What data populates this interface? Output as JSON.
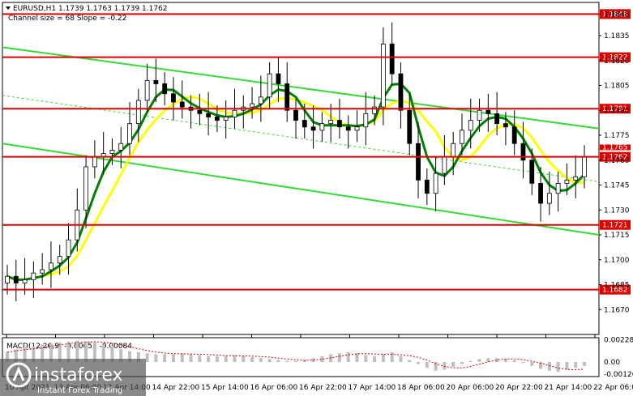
{
  "chart_data": {
    "type": "candlestick",
    "symbol_line": "EURUSD,H1  1.1739 1.1763 1.1739 1.1762",
    "channel_line": "Channel size = 68 Slope = -0.22",
    "y_ticks": [
      "1.1848",
      "1.1835",
      "1.1820",
      "1.1805",
      "1.1790",
      "1.1775",
      "1.1760",
      "1.1745",
      "1.1730",
      "1.1715",
      "1.1700",
      "1.1685",
      "1.1670"
    ],
    "ylim": [
      1.1655,
      1.1855
    ],
    "x_ticks": [
      "10 Apr 2021",
      "13 Apr 06:00",
      "13 Apr 14:00",
      "14 Apr 22:00",
      "15 Apr 14:00",
      "16 Apr 06:00",
      "16 Apr 22:00",
      "17 Apr 14:00",
      "18 Apr 06:00",
      "20 Apr 06:00",
      "20 Apr 22:00",
      "21 Apr 14:00",
      "22 Apr 06:00"
    ],
    "levels": [
      {
        "value": 1.1848,
        "label": "1.1848"
      },
      {
        "value": 1.1822,
        "label": "1.1822"
      },
      {
        "value": 1.1791,
        "label": "1.1791"
      },
      {
        "value": 1.1762,
        "label": "1.1762"
      },
      {
        "value": 1.1721,
        "label": "1.1721"
      },
      {
        "value": 1.1682,
        "label": "1.1682"
      }
    ],
    "hidden_label": "1.1765",
    "close_series": [
      1.169,
      1.1686,
      1.1688,
      1.1692,
      1.1694,
      1.1698,
      1.1702,
      1.1712,
      1.173,
      1.1756,
      1.1762,
      1.1764,
      1.1766,
      1.177,
      1.1782,
      1.1796,
      1.1808,
      1.1806,
      1.18,
      1.1795,
      1.1792,
      1.179,
      1.1788,
      1.1786,
      1.1784,
      1.1786,
      1.179,
      1.1792,
      1.1794,
      1.1798,
      1.1812,
      1.1806,
      1.179,
      1.1784,
      1.178,
      1.1778,
      1.1782,
      1.1784,
      1.178,
      1.1778,
      1.178,
      1.1788,
      1.1792,
      1.183,
      1.1812,
      1.179,
      1.177,
      1.1748,
      1.174,
      1.1752,
      1.1762,
      1.177,
      1.1778,
      1.1784,
      1.179,
      1.1788,
      1.1782,
      1.178,
      1.177,
      1.176,
      1.1746,
      1.1734,
      1.174,
      1.1746,
      1.1748,
      1.175,
      1.1762
    ],
    "series": [
      {
        "name": "",
        "color": "#ffff00"
      },
      {
        "name": "",
        "color": "#008000"
      }
    ],
    "macd": {
      "title": "MACD(12,26,9) -0.00057 -0.00084",
      "y_ticks": [
        "0.00228",
        "0.00",
        "-0.00126"
      ],
      "ylim": [
        -0.0015,
        0.0025
      ],
      "hist": [
        0.001,
        0.0013,
        0.0015,
        0.0016,
        0.0018,
        0.0019,
        0.002,
        0.0021,
        0.0022,
        0.0021,
        0.002,
        0.0018,
        0.0016,
        0.0013,
        0.0011,
        0.001,
        0.0009,
        0.0008,
        0.0008,
        0.0008,
        0.0009,
        0.0008,
        0.0007,
        0.0006,
        0.0006,
        0.0006,
        0.0007,
        0.0006,
        0.0005,
        0.0004,
        0.0003,
        0.0002,
        0.0001,
        0.0001,
        0.0002,
        0.0004,
        0.0006,
        0.0008,
        0.0009,
        0.001,
        0.0009,
        0.0007,
        0.0006,
        0.0008,
        0.001,
        0.0006,
        0.0002,
        -0.0002,
        -0.0006,
        -0.0009,
        -0.0008,
        -0.0005,
        -0.0002,
        0.0001,
        0.0003,
        0.0004,
        0.0004,
        0.0003,
        0.0002,
        -0.0001,
        -0.0004,
        -0.0007,
        -0.0009,
        -0.001,
        -0.0008,
        -0.0006,
        -0.0004
      ]
    }
  },
  "watermark": {
    "brand": "instaforex",
    "tagline": "Instant Forex Trading"
  }
}
